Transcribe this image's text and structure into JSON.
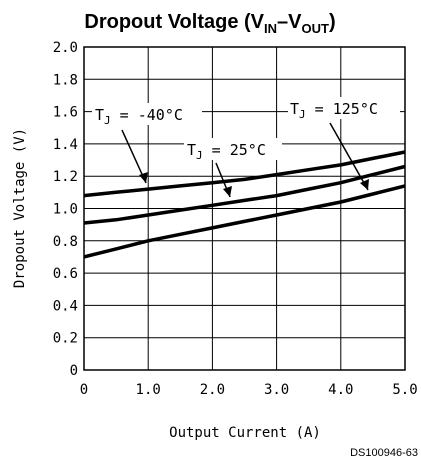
{
  "chart_data": {
    "type": "line",
    "title": {
      "main": "Dropout Voltage (V",
      "sub1": "IN",
      "dash": "–V",
      "sub2": "OUT",
      "close": ")"
    },
    "xlabel": "Output Current (A)",
    "ylabel": "Dropout Voltage (V)",
    "xlim": [
      0,
      5
    ],
    "ylim": [
      0,
      2
    ],
    "x_ticks": [
      "0",
      "1.0",
      "2.0",
      "3.0",
      "4.0",
      "5.0"
    ],
    "y_ticks": [
      "0",
      "0.2",
      "0.4",
      "0.6",
      "0.8",
      "1.0",
      "1.2",
      "1.4",
      "1.6",
      "1.8",
      "2.0"
    ],
    "grid": true,
    "series": [
      {
        "name": "TJ = -40°C",
        "x": [
          0,
          0.5,
          1,
          1.5,
          2,
          2.5,
          3,
          3.5,
          4,
          4.5,
          5
        ],
        "values": [
          1.08,
          1.1,
          1.12,
          1.14,
          1.16,
          1.18,
          1.21,
          1.24,
          1.27,
          1.31,
          1.35
        ]
      },
      {
        "name": "TJ = 25°C",
        "x": [
          0,
          0.5,
          1,
          1.5,
          2,
          2.5,
          3,
          3.5,
          4,
          4.5,
          5
        ],
        "values": [
          0.91,
          0.93,
          0.96,
          0.99,
          1.02,
          1.05,
          1.08,
          1.12,
          1.16,
          1.21,
          1.26
        ]
      },
      {
        "name": "TJ = 125°C",
        "x": [
          0,
          0.5,
          1,
          1.5,
          2,
          2.5,
          3,
          3.5,
          4,
          4.5,
          5
        ],
        "values": [
          0.7,
          0.75,
          0.8,
          0.84,
          0.88,
          0.92,
          0.96,
          1.0,
          1.04,
          1.09,
          1.14
        ]
      }
    ],
    "annotations": [
      {
        "prefix": "T",
        "sub": "J",
        "text": " = -40°C"
      },
      {
        "prefix": "T",
        "sub": "J",
        "text": " = 25°C"
      },
      {
        "prefix": "T",
        "sub": "J",
        "text": " = 125°C"
      }
    ],
    "figure_id": "DS100946-63"
  }
}
